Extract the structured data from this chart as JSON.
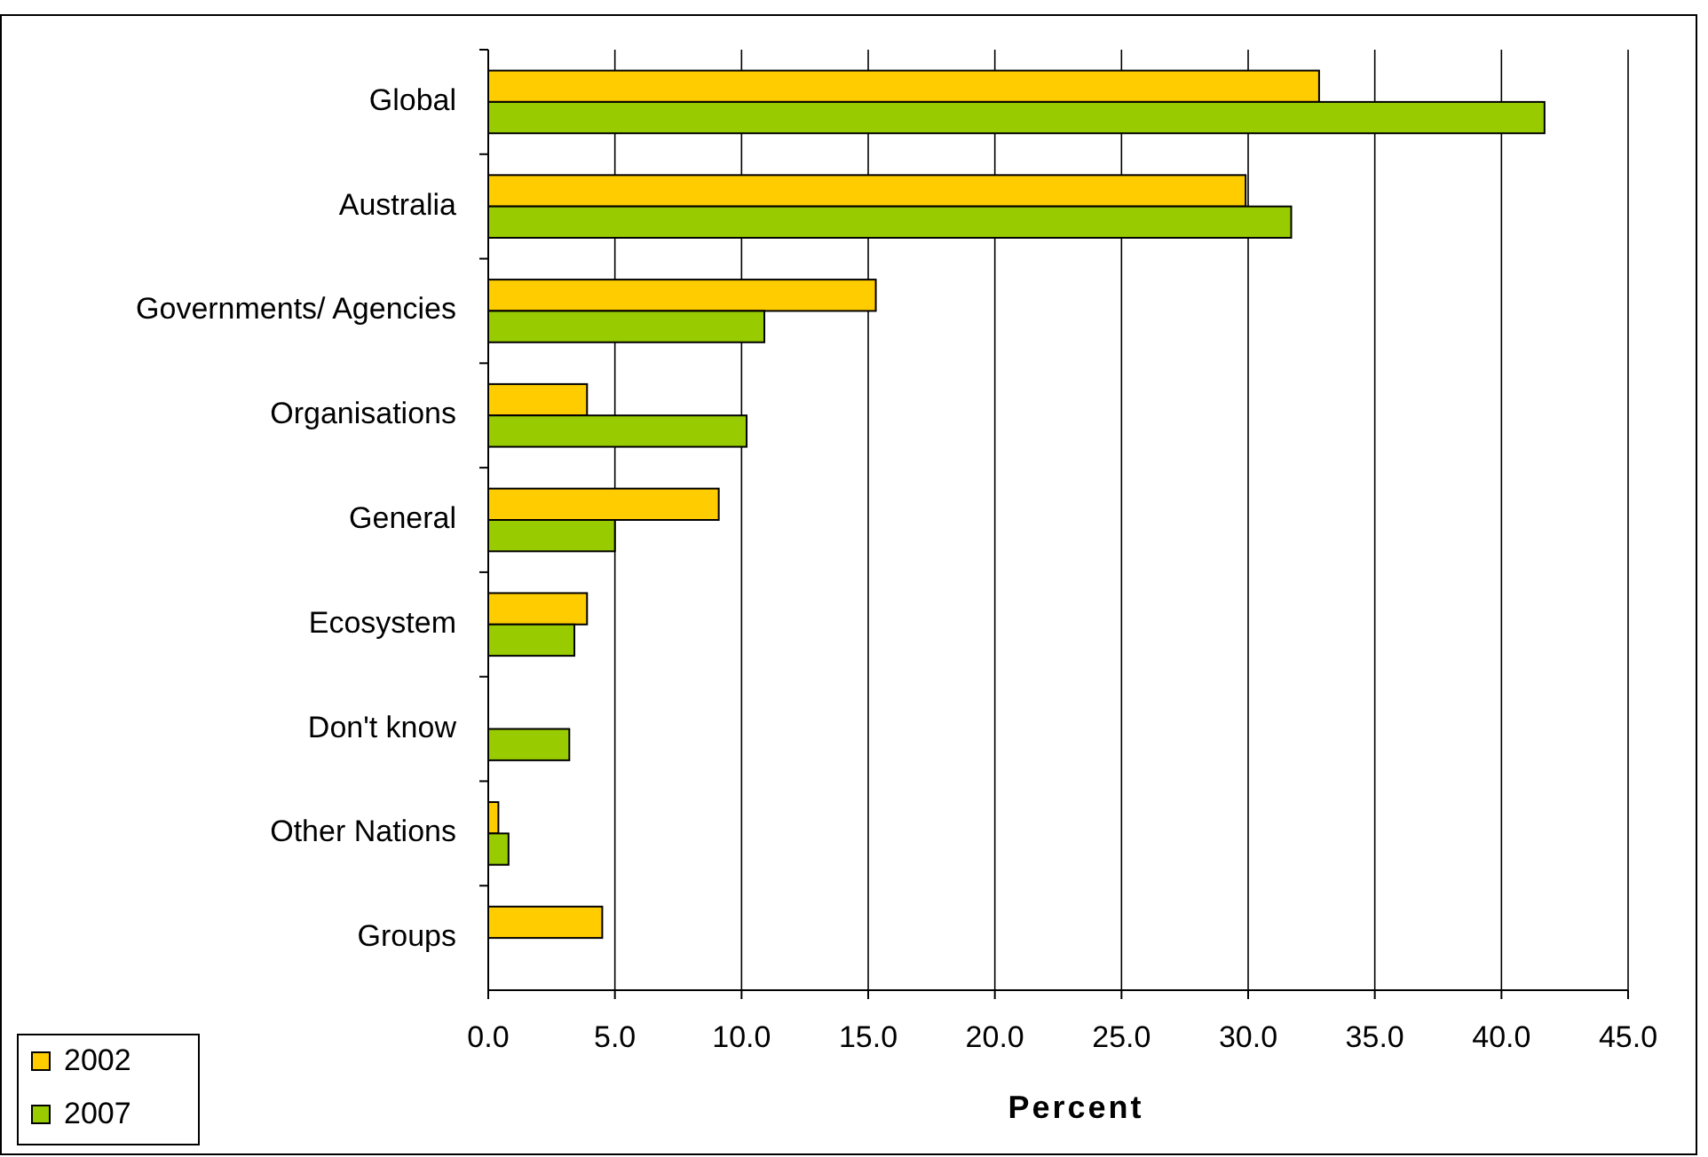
{
  "chart_data": {
    "type": "bar",
    "orientation": "horizontal",
    "xlabel": "Percent",
    "categories": [
      "Global",
      "Australia",
      "Governments/ Agencies",
      "Organisations",
      "General",
      "Ecosystem",
      "Don't know",
      "Other Nations",
      "Groups"
    ],
    "series": [
      {
        "name": "2002",
        "color": "#ffcc00",
        "values": [
          32.8,
          29.9,
          15.3,
          3.9,
          9.1,
          3.9,
          null,
          0.4,
          4.5
        ]
      },
      {
        "name": "2007",
        "color": "#99cc00",
        "values": [
          41.7,
          31.7,
          10.9,
          10.2,
          5.0,
          3.4,
          3.2,
          0.8,
          null
        ]
      }
    ],
    "xlim": [
      0,
      45
    ],
    "xticks": [
      {
        "value": 0,
        "label": "0.0"
      },
      {
        "value": 5,
        "label": "5.0"
      },
      {
        "value": 10,
        "label": "10.0"
      },
      {
        "value": 15,
        "label": "15.0"
      },
      {
        "value": 20,
        "label": "20.0"
      },
      {
        "value": 25,
        "label": "25.0"
      },
      {
        "value": 30,
        "label": "30.0"
      },
      {
        "value": 35,
        "label": "35.0"
      },
      {
        "value": 40,
        "label": "40.0"
      },
      {
        "value": 45,
        "label": "45.0"
      }
    ],
    "grid": "x",
    "legend": "bottom left"
  }
}
